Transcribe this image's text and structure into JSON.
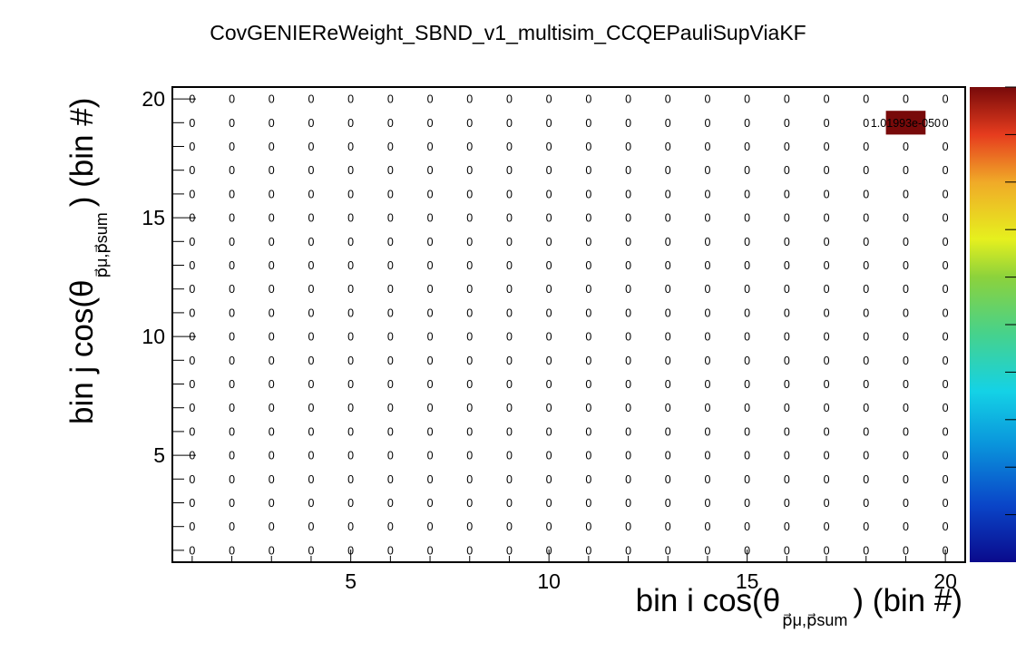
{
  "chart_data": {
    "type": "heatmap",
    "title": "CovGENIEReWeight_SBND_v1_multisim_CCQEPauliSupViaKF",
    "xlabel": {
      "main": "bin i cos(θ",
      "sub": "p⃗μ,p⃗sum",
      "tail": ") (bin #)"
    },
    "ylabel": {
      "main": "bin j cos(θ",
      "sub": "p⃗μ,p⃗sum",
      "tail": ") (bin #)"
    },
    "xlim": [
      0.5,
      20.5
    ],
    "ylim": [
      0.5,
      20.5
    ],
    "x_ticks": [
      "5",
      "10",
      "15",
      "20"
    ],
    "y_ticks": [
      "5",
      "10",
      "15",
      "20"
    ],
    "n_bins_x": 20,
    "n_bins_y": 20,
    "default_cell_label": "0",
    "nonzero_cells": [
      {
        "i": 19,
        "j": 19,
        "value": 1.01993e-50,
        "label": "1.01993e-050"
      }
    ],
    "colorbar": "rainbow (blue to dark red)",
    "grid": false
  }
}
